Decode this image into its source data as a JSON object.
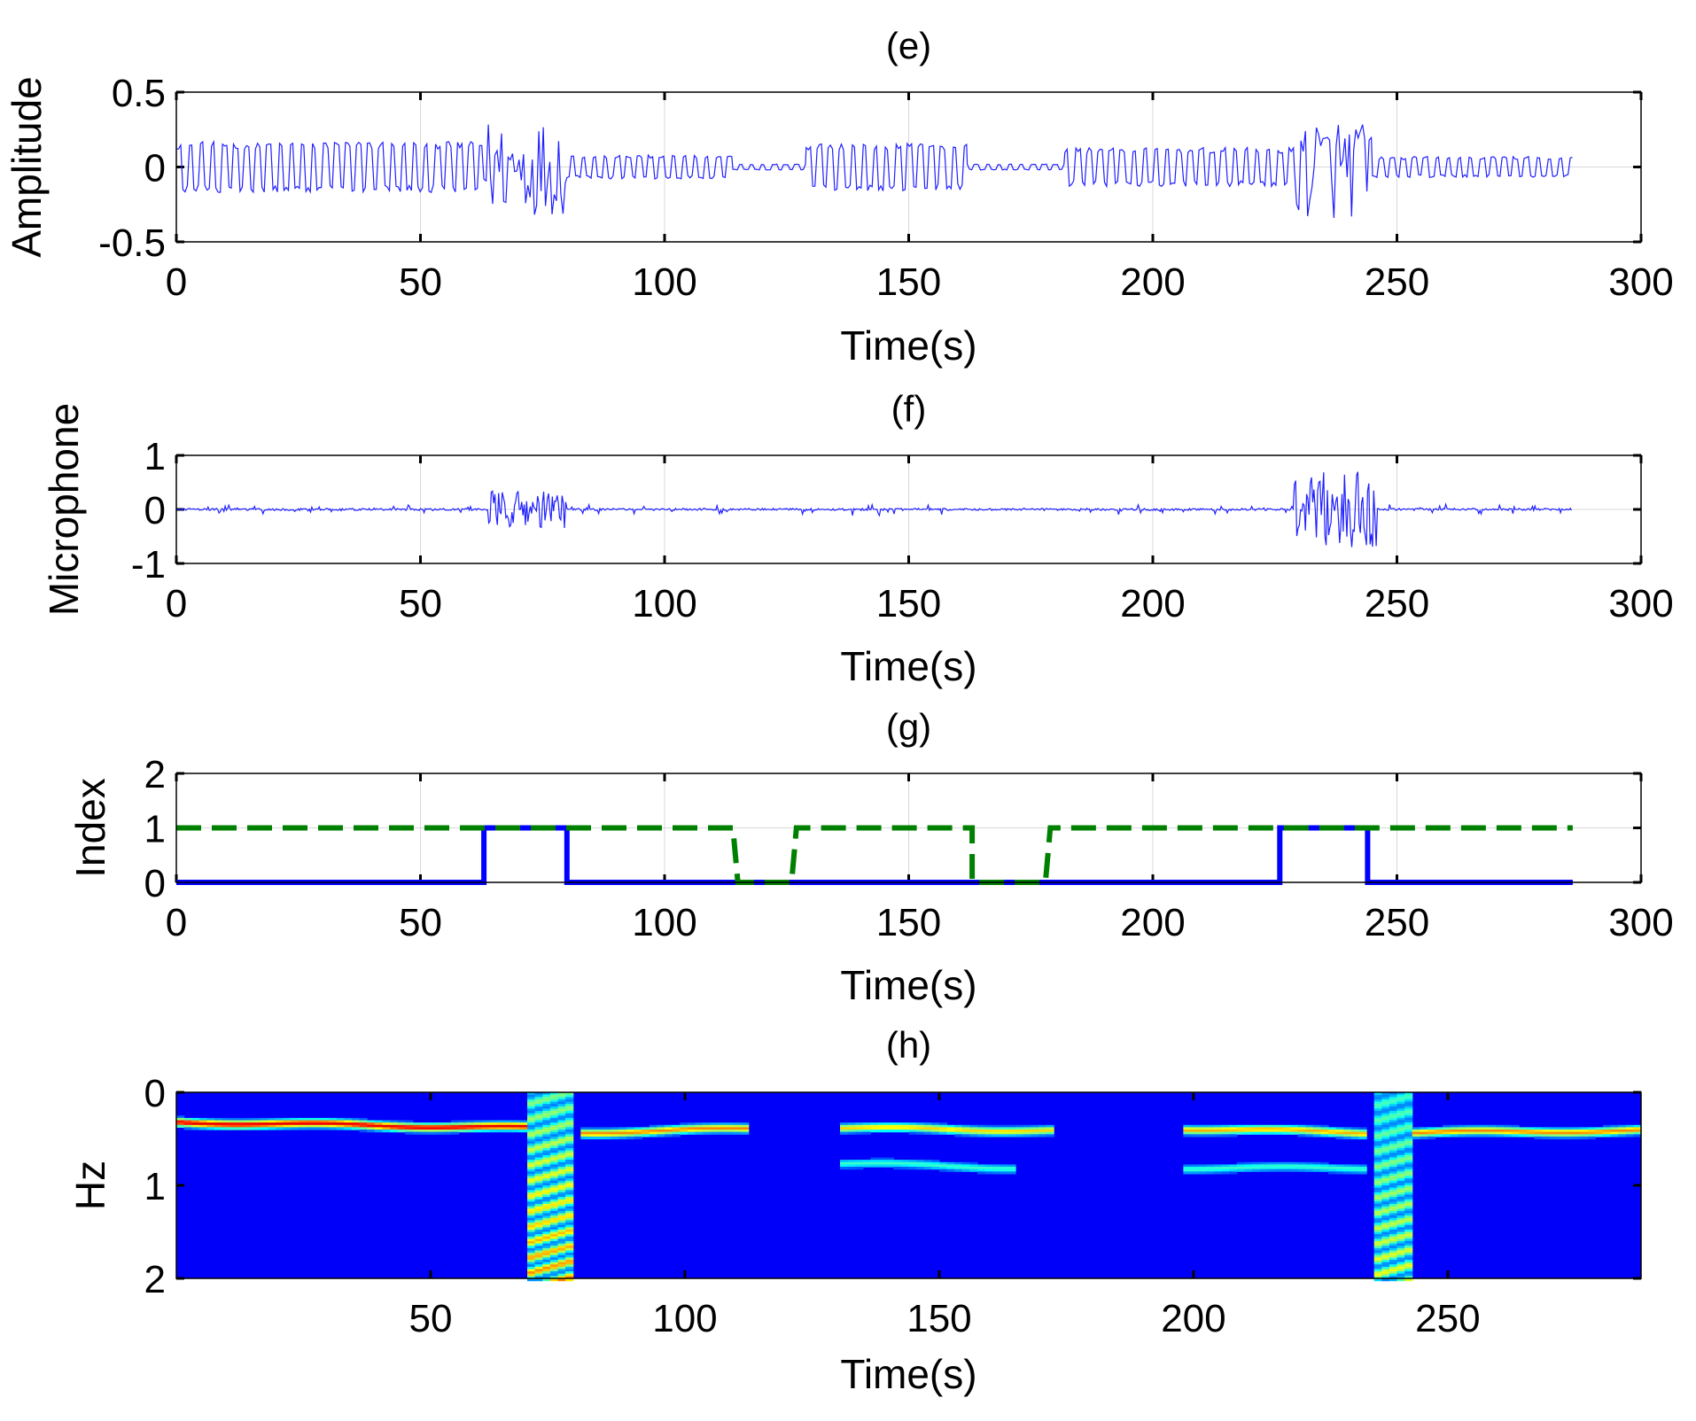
{
  "figure": {
    "background": "#ffffff"
  },
  "chart_data": [
    {
      "id": "e",
      "type": "line",
      "title": "(e)",
      "xlabel": "Time(s)",
      "ylabel": "Amplitude",
      "xlim": [
        0,
        300
      ],
      "ylim": [
        -0.5,
        0.5
      ],
      "xticks": [
        0,
        50,
        100,
        150,
        200,
        250,
        300
      ],
      "yticks": [
        0.5,
        0,
        -0.5
      ],
      "ytick_labels": [
        "0.5",
        "0",
        "-0.5"
      ],
      "grid": true,
      "line_color": "#1f1fff",
      "series": [
        {
          "segments": [
            {
              "x0": 0,
              "x1": 63,
              "amp": 0.17,
              "burst": 0
            },
            {
              "x0": 63,
              "x1": 80,
              "amp": 0.32,
              "burst": 1
            },
            {
              "x0": 80,
              "x1": 114,
              "amp": 0.08,
              "burst": 0
            },
            {
              "x0": 114,
              "x1": 129,
              "amp": 0.02,
              "burst": 0
            },
            {
              "x0": 129,
              "x1": 162,
              "amp": 0.16,
              "burst": 0
            },
            {
              "x0": 162,
              "x1": 182,
              "amp": 0.02,
              "burst": 0
            },
            {
              "x0": 182,
              "x1": 229,
              "amp": 0.13,
              "burst": 0
            },
            {
              "x0": 229,
              "x1": 245,
              "amp": 0.35,
              "burst": 1
            },
            {
              "x0": 245,
              "x1": 286,
              "amp": 0.07,
              "burst": 0
            }
          ]
        }
      ]
    },
    {
      "id": "f",
      "type": "line",
      "title": "(f)",
      "xlabel": "Time(s)",
      "ylabel": "Microphone",
      "xlim": [
        0,
        300
      ],
      "ylim": [
        -1,
        1
      ],
      "xticks": [
        0,
        50,
        100,
        150,
        200,
        250,
        300
      ],
      "yticks": [
        1,
        0,
        -1
      ],
      "ytick_labels": [
        "1",
        "0",
        "-1"
      ],
      "grid": true,
      "line_color": "#1f1fff",
      "series": [
        {
          "segments": [
            {
              "x0": 0,
              "x1": 64,
              "amp": 0.08,
              "burst": 0
            },
            {
              "x0": 64,
              "x1": 80,
              "amp": 0.35,
              "burst": 1
            },
            {
              "x0": 80,
              "x1": 113,
              "amp": 0.1,
              "burst": 0
            },
            {
              "x0": 113,
              "x1": 128,
              "amp": 0.0,
              "burst": 0
            },
            {
              "x0": 128,
              "x1": 160,
              "amp": 0.12,
              "burst": 0
            },
            {
              "x0": 160,
              "x1": 182,
              "amp": 0.0,
              "burst": 0
            },
            {
              "x0": 182,
              "x1": 229,
              "amp": 0.1,
              "burst": 0
            },
            {
              "x0": 229,
              "x1": 246,
              "amp": 0.7,
              "burst": 1
            },
            {
              "x0": 246,
              "x1": 286,
              "amp": 0.1,
              "burst": 0
            }
          ]
        }
      ]
    },
    {
      "id": "g",
      "type": "line",
      "title": "(g)",
      "xlabel": "Time(s)",
      "ylabel": "Index",
      "xlim": [
        0,
        300
      ],
      "ylim": [
        0,
        2
      ],
      "xticks": [
        0,
        50,
        100,
        150,
        200,
        250,
        300
      ],
      "yticks": [
        2,
        1,
        0
      ],
      "ytick_labels": [
        "2",
        "1",
        "0"
      ],
      "grid": true,
      "series": [
        {
          "color": "#0000ff",
          "style": "solid",
          "points": [
            [
              0,
              0
            ],
            [
              63,
              0
            ],
            [
              63,
              1
            ],
            [
              80,
              1
            ],
            [
              80,
              0
            ],
            [
              226,
              0
            ],
            [
              226,
              1
            ],
            [
              244,
              1
            ],
            [
              244,
              0
            ],
            [
              286,
              0
            ]
          ]
        },
        {
          "color": "#008000",
          "style": "dashed",
          "points": [
            [
              0,
              1
            ],
            [
              114,
              1
            ],
            [
              115,
              0
            ],
            [
              126,
              0
            ],
            [
              127,
              1
            ],
            [
              163,
              1
            ],
            [
              163,
              0
            ],
            [
              178,
              0
            ],
            [
              179,
              1
            ],
            [
              286,
              1
            ]
          ]
        }
      ]
    },
    {
      "id": "h",
      "type": "heatmap",
      "title": "(h)",
      "xlabel": "Time(s)",
      "ylabel": "Hz",
      "xlim": [
        0,
        288
      ],
      "ylim": [
        0,
        2
      ],
      "xticks": [
        50,
        100,
        150,
        200,
        250
      ],
      "yticks": [
        0,
        1,
        2
      ],
      "ytick_labels": [
        "0",
        "1",
        "2"
      ],
      "colormap": "jet",
      "ridges": [
        {
          "x0": 0,
          "x1": 69,
          "f0": 0.31,
          "f1": 0.37,
          "strength": 1.0
        },
        {
          "x0": 79,
          "x1": 112,
          "f0": 0.42,
          "f1": 0.38,
          "strength": 0.8
        },
        {
          "x0": 130,
          "x1": 172,
          "f0": 0.37,
          "f1": 0.4,
          "strength": 0.7
        },
        {
          "x0": 130,
          "x1": 165,
          "f0": 0.75,
          "f1": 0.8,
          "strength": 0.4
        },
        {
          "x0": 198,
          "x1": 233,
          "f0": 0.38,
          "f1": 0.42,
          "strength": 0.75
        },
        {
          "x0": 198,
          "x1": 233,
          "f0": 0.8,
          "f1": 0.8,
          "strength": 0.4
        },
        {
          "x0": 243,
          "x1": 288,
          "f0": 0.42,
          "f1": 0.4,
          "strength": 0.8
        }
      ],
      "bursts": [
        {
          "x0": 69,
          "x1": 77,
          "strength": 1.0
        },
        {
          "x0": 235,
          "x1": 242,
          "strength": 0.75
        }
      ]
    }
  ]
}
